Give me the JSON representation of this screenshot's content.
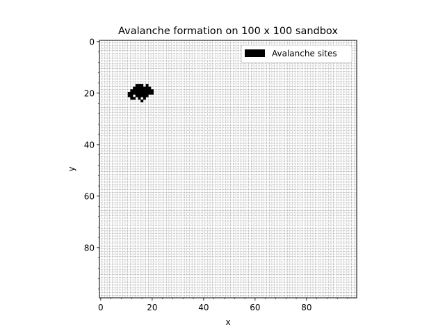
{
  "chart_data": {
    "type": "heatmap",
    "title": "Avalanche formation on 100 x 100 sandbox",
    "xlabel": "x",
    "ylabel": "y",
    "grid_size": [
      100,
      100
    ],
    "xlim": [
      -0.5,
      99.5
    ],
    "ylim": [
      99.5,
      -0.5
    ],
    "y_inverted": true,
    "x_ticks": [
      0,
      20,
      40,
      60,
      80
    ],
    "y_ticks": [
      0,
      20,
      40,
      60,
      80
    ],
    "grid": true,
    "legend": {
      "placement": "top-right",
      "entries": [
        {
          "name": "Avalanche sites",
          "color": "#000000"
        }
      ]
    },
    "avalanche_sites": [
      [
        14,
        17
      ],
      [
        15,
        17
      ],
      [
        16,
        17
      ],
      [
        18,
        17
      ],
      [
        13,
        18
      ],
      [
        14,
        18
      ],
      [
        15,
        18
      ],
      [
        16,
        18
      ],
      [
        17,
        18
      ],
      [
        18,
        18
      ],
      [
        19,
        18
      ],
      [
        12,
        19
      ],
      [
        13,
        19
      ],
      [
        14,
        19
      ],
      [
        15,
        19
      ],
      [
        16,
        19
      ],
      [
        17,
        19
      ],
      [
        18,
        19
      ],
      [
        19,
        19
      ],
      [
        20,
        19
      ],
      [
        11,
        20
      ],
      [
        12,
        20
      ],
      [
        13,
        20
      ],
      [
        14,
        20
      ],
      [
        15,
        20
      ],
      [
        16,
        20
      ],
      [
        17,
        20
      ],
      [
        18,
        20
      ],
      [
        19,
        20
      ],
      [
        20,
        20
      ],
      [
        11,
        21
      ],
      [
        12,
        21
      ],
      [
        14,
        21
      ],
      [
        15,
        21
      ],
      [
        16,
        21
      ],
      [
        17,
        21
      ],
      [
        18,
        21
      ],
      [
        12,
        22
      ],
      [
        13,
        22
      ],
      [
        15,
        22
      ],
      [
        17,
        22
      ],
      [
        16,
        23
      ]
    ]
  }
}
